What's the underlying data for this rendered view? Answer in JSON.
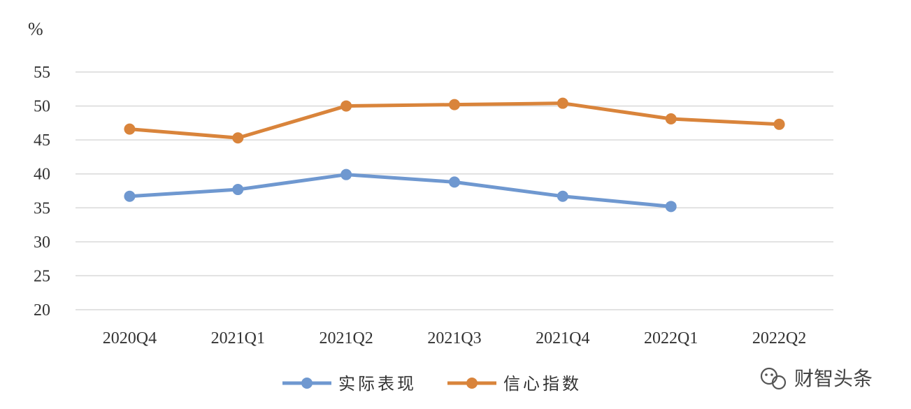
{
  "chart_data": {
    "type": "line",
    "unit": "%",
    "categories": [
      "2020Q4",
      "2021Q1",
      "2021Q2",
      "2021Q3",
      "2021Q4",
      "2022Q1",
      "2022Q2"
    ],
    "ylim": [
      20,
      55
    ],
    "yticks": [
      20,
      25,
      30,
      35,
      40,
      45,
      50,
      55
    ],
    "grid": true,
    "legend_position": "bottom",
    "series": [
      {
        "name": "实际表现",
        "color": "#6f98d0",
        "values": [
          36.7,
          37.7,
          39.9,
          38.8,
          36.7,
          35.2,
          null
        ]
      },
      {
        "name": "信心指数",
        "color": "#d9843b",
        "values": [
          46.6,
          45.3,
          50.0,
          50.2,
          50.4,
          48.1,
          47.3
        ]
      }
    ]
  },
  "watermark": {
    "text": "财智头条",
    "icon": "wechat-icon"
  }
}
